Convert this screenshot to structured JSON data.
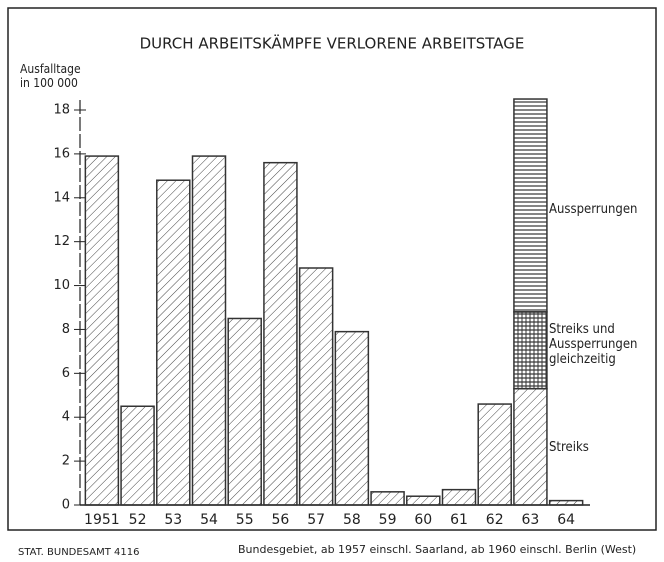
{
  "chart_data": {
    "type": "stacked-bar",
    "title": "DURCH ARBEITSKÄMPFE VERLORENE ARBEITSTAGE",
    "y_label": "Ausfalltage in 100 000",
    "source": "STAT. BUNDESAMT 4116",
    "note": "Bundesgebiet, ab 1957 einschl. Saarland, ab 1960 einschl. Berlin (West)",
    "categories": [
      "1951",
      "52",
      "53",
      "54",
      "55",
      "56",
      "57",
      "58",
      "59",
      "60",
      "61",
      "62",
      "63",
      "64"
    ],
    "series": [
      {
        "name": "Streiks",
        "color": "#333333",
        "pattern": "diagonal",
        "values": [
          15.9,
          4.5,
          14.8,
          15.9,
          8.5,
          15.6,
          10.8,
          7.9,
          0.6,
          0.4,
          0.7,
          4.6,
          5.3,
          0.2
        ]
      },
      {
        "name": "Streiks und Aussperrungen gleichzeitig",
        "color": "#333333",
        "pattern": "crosshatch",
        "values": [
          null,
          null,
          null,
          null,
          null,
          null,
          null,
          null,
          null,
          null,
          null,
          null,
          3.5,
          null
        ]
      },
      {
        "name": "Aussperrungen",
        "color": "#333333",
        "pattern": "horizontal",
        "values": [
          null,
          null,
          null,
          null,
          null,
          null,
          null,
          null,
          null,
          null,
          null,
          null,
          9.7,
          null
        ]
      }
    ],
    "ylim": [
      0,
      18
    ],
    "yticks": [
      0,
      2,
      4,
      6,
      8,
      10,
      12,
      14,
      16,
      18
    ]
  }
}
